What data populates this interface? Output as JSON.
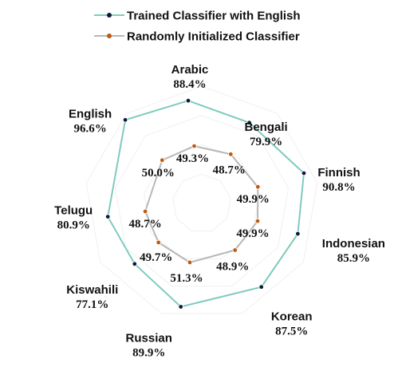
{
  "chart_data": {
    "type": "radar",
    "title": "",
    "categories": [
      "Arabic",
      "Bengali",
      "Finnish",
      "Indonesian",
      "Korean",
      "Russian",
      "Kiswahili",
      "Telugu",
      "English"
    ],
    "series": [
      {
        "name": "Trained Classifier with English",
        "color": "#7fcbbd",
        "marker_color": "#0d1a3a",
        "values": [
          88.4,
          79.9,
          90.8,
          85.9,
          87.5,
          89.9,
          77.1,
          80.9,
          96.6
        ],
        "labels": [
          "88.4%",
          "79.9%",
          "90.8%",
          "85.9%",
          "87.5%",
          "89.9%",
          "77.1%",
          "80.9%",
          "96.6%"
        ]
      },
      {
        "name": "Randomly Initialized Classifier",
        "color": "#b8b8b8",
        "marker_color": "#c05a10",
        "values": [
          49.3,
          48.7,
          49.9,
          49.9,
          48.9,
          51.3,
          49.7,
          48.7,
          50.0
        ],
        "labels": [
          "49.3%",
          "48.7%",
          "49.9%",
          "49.9%",
          "48.9%",
          "51.3%",
          "49.7%",
          "48.7%",
          "50.0%"
        ]
      }
    ],
    "grid": true,
    "legend_position": "top-center"
  }
}
